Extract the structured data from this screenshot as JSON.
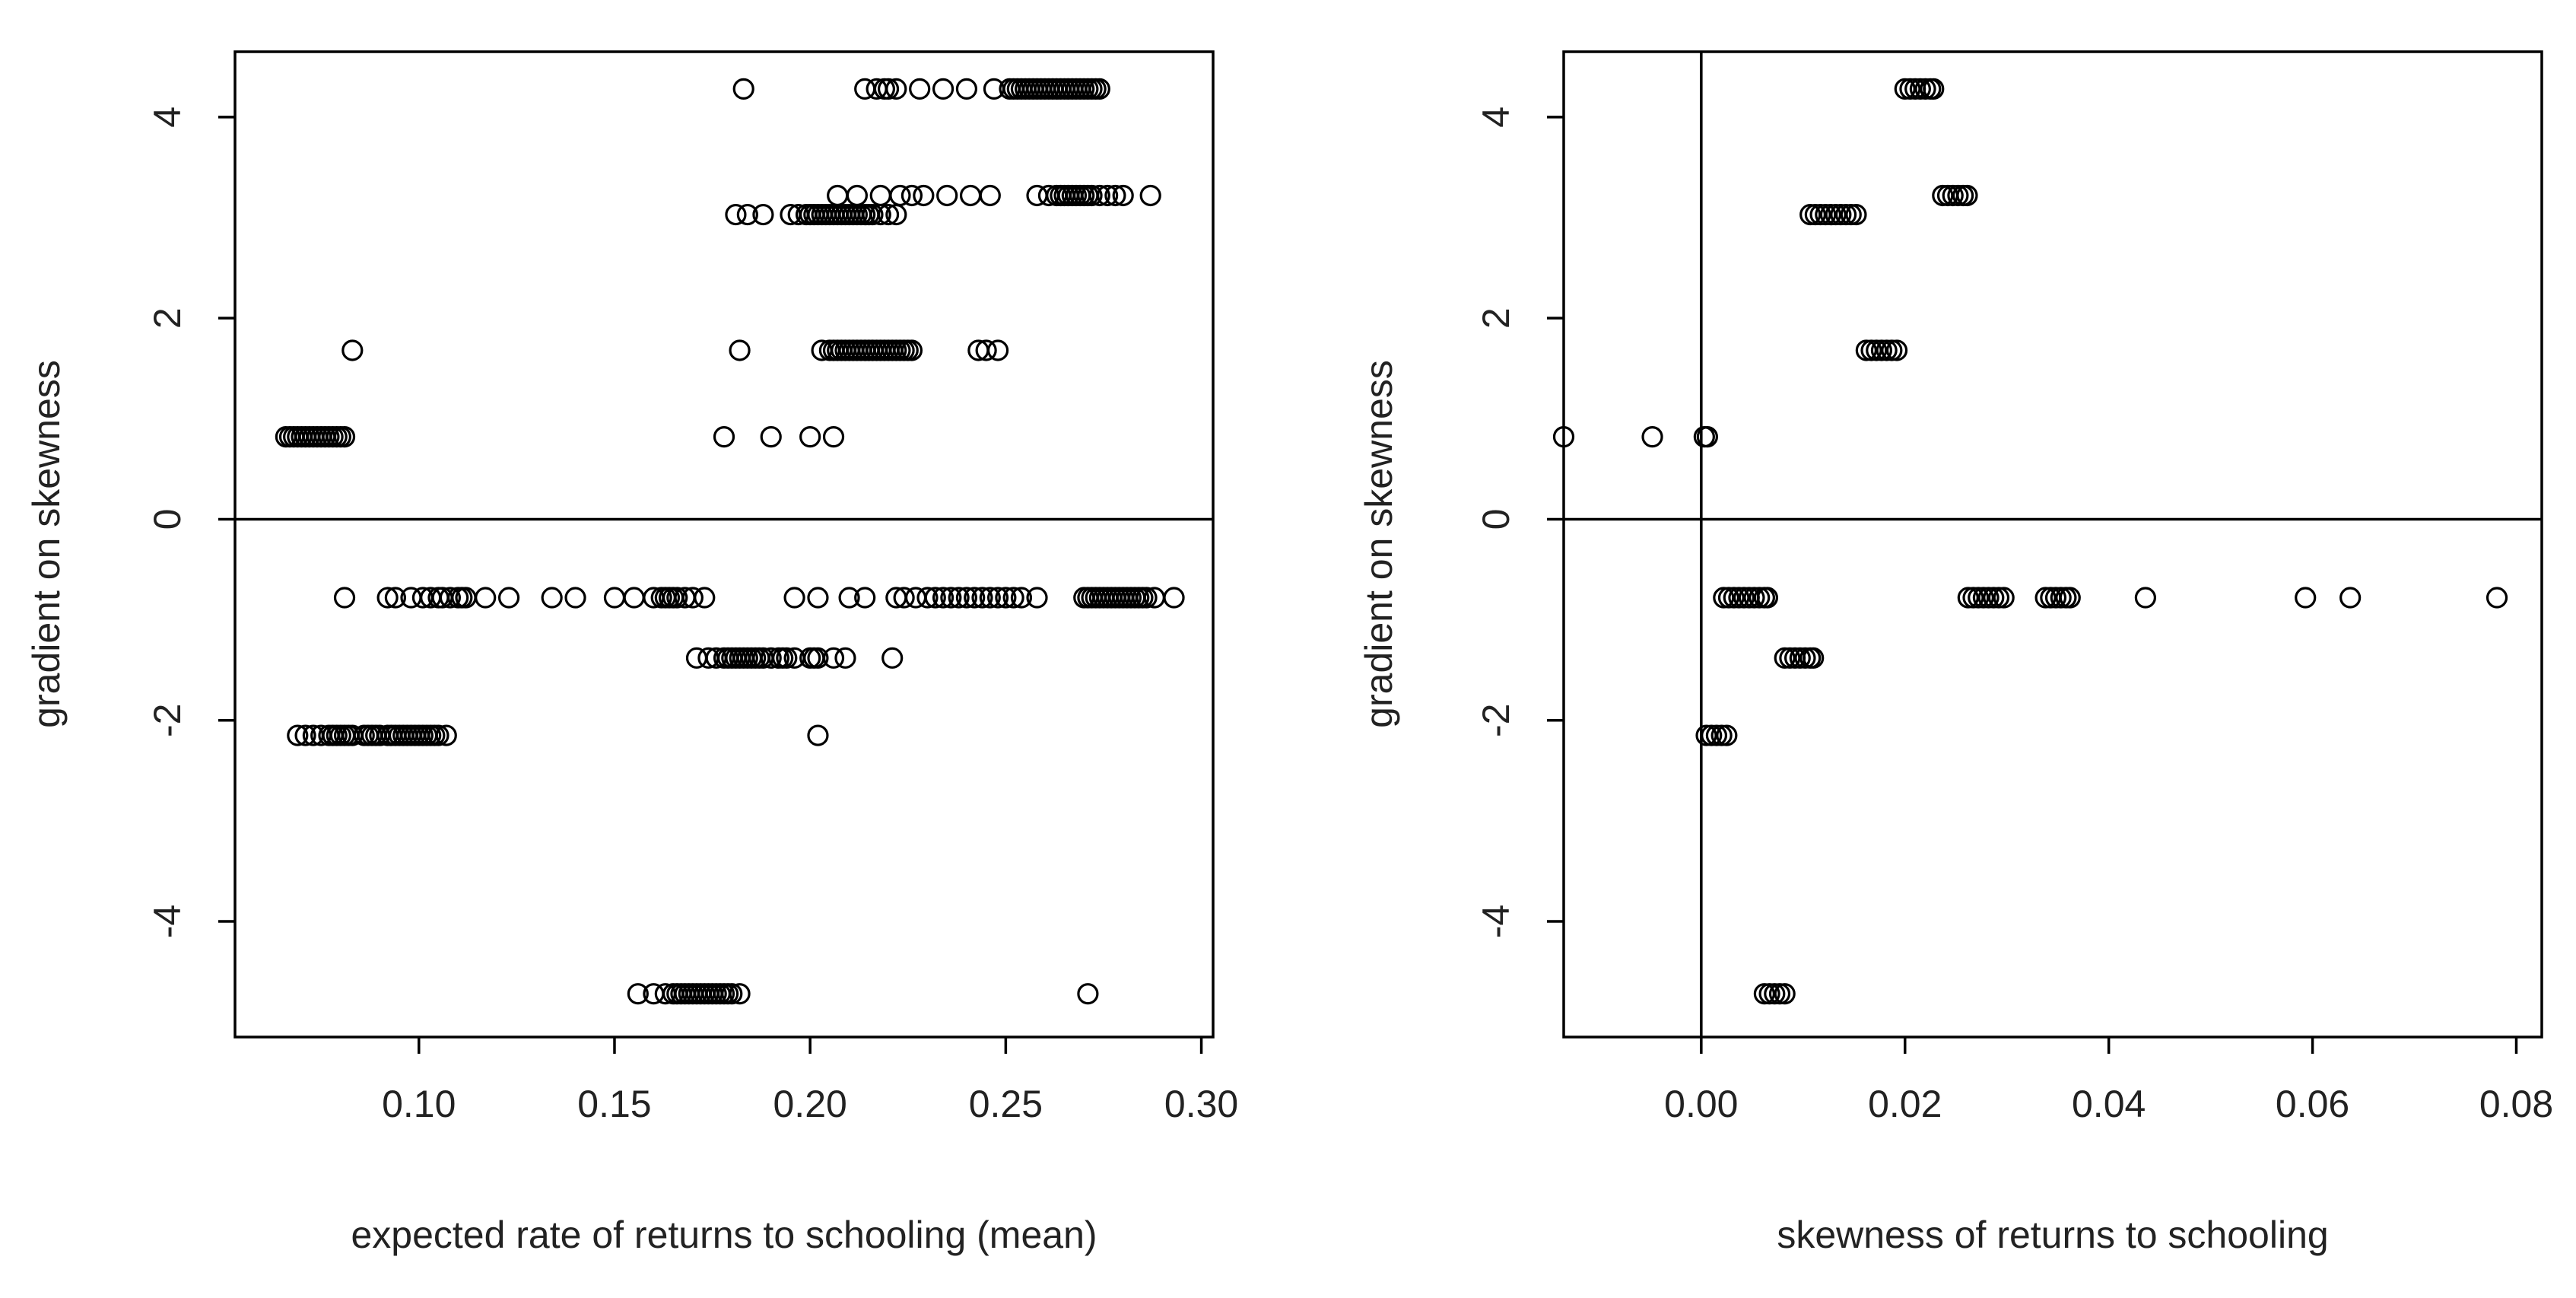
{
  "chart_data": [
    {
      "type": "scatter",
      "xlabel": "expected rate of returns to schooling (mean)",
      "ylabel": "gradient on skewness",
      "xlim": [
        0.053,
        0.303
      ],
      "ylim": [
        -5.15,
        4.65
      ],
      "xticks": [
        "0.10",
        "0.15",
        "0.20",
        "0.25",
        "0.30"
      ],
      "yticks": [
        "-4",
        "-2",
        "0",
        "2",
        "4"
      ],
      "hline": 0,
      "vline": null,
      "marker": "open-circle",
      "groups": [
        {
          "y": 4.28,
          "x": [
            0.183,
            0.214,
            0.217,
            0.219,
            0.22,
            0.222,
            0.228,
            0.234,
            0.24,
            0.247,
            0.251,
            0.252,
            0.253,
            0.254,
            0.255,
            0.256,
            0.257,
            0.258,
            0.259,
            0.26,
            0.261,
            0.262,
            0.263,
            0.264,
            0.265,
            0.266,
            0.267,
            0.268,
            0.269,
            0.27,
            0.271,
            0.272,
            0.273,
            0.274
          ]
        },
        {
          "y": 3.22,
          "x": [
            0.207,
            0.212,
            0.218,
            0.223,
            0.226,
            0.229,
            0.235,
            0.241,
            0.246,
            0.258,
            0.261,
            0.263,
            0.264,
            0.265,
            0.266,
            0.267,
            0.268,
            0.269,
            0.27,
            0.271,
            0.272,
            0.274,
            0.276,
            0.278,
            0.28,
            0.287
          ]
        },
        {
          "y": 3.03,
          "x": [
            0.181,
            0.184,
            0.188,
            0.195,
            0.197,
            0.199,
            0.2,
            0.201,
            0.202,
            0.203,
            0.204,
            0.205,
            0.206,
            0.207,
            0.208,
            0.209,
            0.21,
            0.211,
            0.212,
            0.213,
            0.214,
            0.215,
            0.216,
            0.218,
            0.22,
            0.222
          ]
        },
        {
          "y": 1.68,
          "x": [
            0.083,
            0.182,
            0.203,
            0.205,
            0.206,
            0.207,
            0.208,
            0.209,
            0.21,
            0.211,
            0.212,
            0.213,
            0.214,
            0.215,
            0.216,
            0.217,
            0.218,
            0.219,
            0.22,
            0.221,
            0.222,
            0.223,
            0.224,
            0.225,
            0.226,
            0.243,
            0.245,
            0.248
          ]
        },
        {
          "y": 0.82,
          "x": [
            0.066,
            0.067,
            0.068,
            0.069,
            0.07,
            0.071,
            0.072,
            0.073,
            0.074,
            0.075,
            0.076,
            0.077,
            0.078,
            0.079,
            0.08,
            0.081,
            0.178,
            0.19,
            0.2,
            0.206
          ]
        },
        {
          "y": -0.78,
          "x": [
            0.081,
            0.092,
            0.094,
            0.098,
            0.101,
            0.103,
            0.105,
            0.106,
            0.108,
            0.11,
            0.111,
            0.112,
            0.117,
            0.123,
            0.134,
            0.14,
            0.15,
            0.155,
            0.16,
            0.162,
            0.163,
            0.164,
            0.165,
            0.166,
            0.168,
            0.17,
            0.173,
            0.196,
            0.202,
            0.21,
            0.214,
            0.222,
            0.224,
            0.227,
            0.23,
            0.232,
            0.234,
            0.236,
            0.238,
            0.24,
            0.242,
            0.244,
            0.246,
            0.248,
            0.25,
            0.252,
            0.254,
            0.258,
            0.27,
            0.271,
            0.272,
            0.273,
            0.274,
            0.275,
            0.276,
            0.277,
            0.278,
            0.279,
            0.28,
            0.281,
            0.282,
            0.283,
            0.284,
            0.285,
            0.286,
            0.288,
            0.293
          ]
        },
        {
          "y": -1.38,
          "x": [
            0.171,
            0.174,
            0.176,
            0.178,
            0.179,
            0.18,
            0.181,
            0.182,
            0.183,
            0.184,
            0.185,
            0.186,
            0.187,
            0.188,
            0.19,
            0.192,
            0.193,
            0.194,
            0.196,
            0.2,
            0.201,
            0.202,
            0.206,
            0.209,
            0.221
          ]
        },
        {
          "y": -2.15,
          "x": [
            0.069,
            0.071,
            0.073,
            0.075,
            0.077,
            0.078,
            0.079,
            0.08,
            0.081,
            0.082,
            0.083,
            0.086,
            0.087,
            0.088,
            0.089,
            0.09,
            0.092,
            0.093,
            0.094,
            0.095,
            0.096,
            0.097,
            0.098,
            0.099,
            0.1,
            0.101,
            0.102,
            0.103,
            0.104,
            0.105,
            0.107,
            0.202
          ]
        },
        {
          "y": -4.72,
          "x": [
            0.156,
            0.16,
            0.163,
            0.165,
            0.166,
            0.167,
            0.168,
            0.169,
            0.17,
            0.171,
            0.172,
            0.173,
            0.174,
            0.175,
            0.176,
            0.177,
            0.178,
            0.179,
            0.18,
            0.182,
            0.271
          ]
        }
      ]
    },
    {
      "type": "scatter",
      "xlabel": "skewness of returns to schooling",
      "ylabel": "gradient on skewness",
      "xlim": [
        -0.0135,
        0.0825
      ],
      "ylim": [
        -5.15,
        4.65
      ],
      "xticks": [
        "0.00",
        "0.02",
        "0.04",
        "0.06",
        "0.08"
      ],
      "yticks": [
        "-4",
        "-2",
        "0",
        "2",
        "4"
      ],
      "hline": 0,
      "vline": 0,
      "marker": "open-circle",
      "groups": [
        {
          "y": 4.28,
          "x": [
            0.02,
            0.0205,
            0.021,
            0.0215,
            0.022,
            0.0225,
            0.0228
          ]
        },
        {
          "y": 3.22,
          "x": [
            0.0237,
            0.0242,
            0.0247,
            0.0252,
            0.0257,
            0.0261
          ]
        },
        {
          "y": 3.03,
          "x": [
            0.0107,
            0.0112,
            0.0117,
            0.0122,
            0.0127,
            0.0132,
            0.0137,
            0.0142,
            0.0147,
            0.0152
          ]
        },
        {
          "y": 1.68,
          "x": [
            0.0162,
            0.0167,
            0.0172,
            0.0177,
            0.0182,
            0.0187,
            0.0192
          ]
        },
        {
          "y": 0.82,
          "x": [
            -0.0135,
            -0.0048,
            0.0003,
            0.0006
          ]
        },
        {
          "y": -0.78,
          "x": [
            0.0022,
            0.0027,
            0.0032,
            0.0037,
            0.0042,
            0.0047,
            0.0052,
            0.0057,
            0.0062,
            0.0065,
            0.0262,
            0.0267,
            0.0272,
            0.0277,
            0.0282,
            0.0287,
            0.0292,
            0.0297,
            0.0338,
            0.0343,
            0.0348,
            0.0353,
            0.0358,
            0.0362,
            0.0436,
            0.0593,
            0.0637,
            0.0781
          ]
        },
        {
          "y": -1.38,
          "x": [
            0.0082,
            0.0087,
            0.0092,
            0.0097,
            0.0102,
            0.0107,
            0.011
          ]
        },
        {
          "y": -2.15,
          "x": [
            0.0005,
            0.001,
            0.0015,
            0.002,
            0.0025
          ]
        },
        {
          "y": -4.72,
          "x": [
            0.0062,
            0.0067,
            0.0072,
            0.0077,
            0.0082
          ]
        }
      ]
    }
  ]
}
